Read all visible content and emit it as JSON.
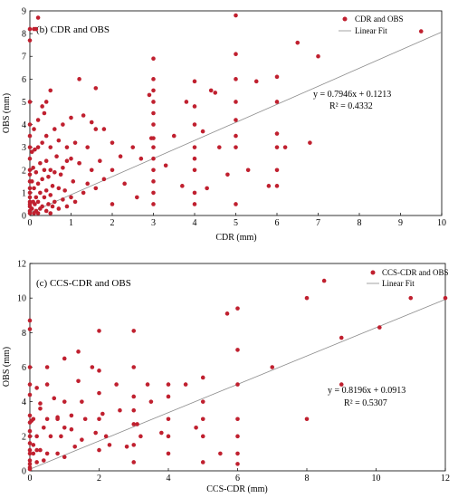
{
  "chart_data": [
    {
      "type": "scatter",
      "title": "(b) CDR and OBS",
      "xlabel": "CDR (mm)",
      "ylabel": "OBS (mm)",
      "xlim": [
        0,
        10
      ],
      "ylim": [
        0,
        9
      ],
      "xticks": [
        0,
        1,
        2,
        3,
        4,
        5,
        6,
        7,
        8,
        9,
        10
      ],
      "yticks": [
        0,
        1,
        2,
        3,
        4,
        5,
        6,
        7,
        8,
        9
      ],
      "legend": {
        "position": "top-right",
        "items": [
          "CDR and OBS",
          "Linear Fit"
        ]
      },
      "point_color": "#c0202f",
      "fit_color": "#8c8c8c",
      "fit": {
        "slope": 0.7946,
        "intercept": 0.1213
      },
      "equation": "y = 0.7946x + 0.1213",
      "r2": "R² = 0.4332",
      "series": [
        {
          "name": "CDR and OBS",
          "x": [
            0,
            0,
            0,
            0,
            0,
            0,
            0,
            0,
            0,
            0,
            0,
            0,
            0,
            0,
            0,
            0,
            0,
            0,
            0.05,
            0.05,
            0.05,
            0.08,
            0.08,
            0.1,
            0.1,
            0.1,
            0.12,
            0.12,
            0.15,
            0.15,
            0.15,
            0.2,
            0.2,
            0.2,
            0.2,
            0.2,
            0.25,
            0.25,
            0.25,
            0.3,
            0.3,
            0.3,
            0.3,
            0.35,
            0.35,
            0.4,
            0.4,
            0.4,
            0.4,
            0.45,
            0.45,
            0.5,
            0.5,
            0.5,
            0.5,
            0.55,
            0.55,
            0.6,
            0.6,
            0.6,
            0.65,
            0.7,
            0.7,
            0.7,
            0.75,
            0.8,
            0.8,
            0.8,
            0.85,
            0.9,
            0.9,
            1.0,
            1.0,
            1.0,
            1.05,
            1.1,
            1.1,
            1.2,
            1.2,
            1.3,
            1.3,
            1.4,
            1.4,
            1.5,
            1.5,
            1.6,
            1.6,
            1.7,
            1.8,
            1.8,
            2.0,
            2.0,
            2.0,
            2.2,
            2.3,
            2.5,
            2.6,
            2.7,
            3,
            3,
            3,
            3,
            3,
            3,
            3,
            3,
            3,
            3,
            3,
            3,
            3,
            3.3,
            3.5,
            3.7,
            3.8,
            4,
            4,
            4,
            4,
            4,
            4,
            4,
            4,
            4.2,
            4.3,
            4.4,
            4.5,
            4.6,
            4.8,
            5,
            5,
            5,
            5,
            5,
            5,
            5,
            5,
            5.3,
            5.5,
            5.8,
            6,
            6,
            6,
            6,
            6,
            6,
            6.2,
            6.5,
            6.8,
            7,
            0.1,
            0.15,
            0.2,
            0.4,
            0.5,
            0.35,
            1.2,
            1.6,
            0.9,
            2.9,
            2.95,
            9.5
          ],
          "y": [
            8.2,
            7.7,
            5.0,
            4.0,
            3.5,
            3.0,
            2.5,
            2.0,
            1.8,
            1.5,
            1.2,
            1.0,
            0.8,
            0.6,
            0.5,
            0.4,
            0.2,
            0.1,
            2.8,
            1.5,
            0.3,
            2.1,
            0.6,
            3.8,
            1.2,
            0.1,
            2.9,
            0.5,
            1.9,
            0.8,
            0.2,
            4.2,
            3.0,
            1.4,
            0.6,
            0.1,
            2.3,
            1.0,
            0.3,
            4.8,
            3.2,
            1.6,
            0.4,
            2.0,
            0.8,
            3.5,
            2.4,
            1.1,
            0.2,
            1.7,
            0.5,
            3.0,
            2.0,
            0.9,
            0.1,
            1.3,
            0.4,
            3.8,
            1.9,
            0.6,
            2.6,
            3.3,
            1.2,
            0.3,
            1.8,
            4.0,
            2.1,
            0.7,
            1.1,
            3.0,
            0.4,
            4.3,
            2.5,
            0.8,
            1.5,
            3.2,
            0.6,
            6.0,
            2.3,
            4.4,
            1.0,
            3.0,
            1.4,
            4.1,
            2.0,
            5.6,
            1.2,
            2.4,
            3.8,
            1.6,
            3.2,
            2.0,
            0.5,
            2.6,
            1.4,
            3.0,
            0.8,
            2.5,
            6.9,
            6.0,
            5.5,
            5.0,
            4.5,
            4.0,
            3.4,
            3.0,
            2.5,
            2.0,
            1.5,
            1.0,
            0.5,
            2.2,
            3.5,
            1.3,
            5.0,
            5.9,
            4.8,
            4.0,
            3.0,
            2.5,
            2.0,
            1.0,
            0.5,
            3.7,
            1.2,
            5.5,
            5.4,
            3.0,
            1.8,
            8.8,
            7.1,
            6.0,
            5.0,
            4.2,
            3.5,
            3.0,
            0.5,
            2.0,
            5.9,
            1.3,
            6.1,
            5.0,
            3.6,
            3.0,
            2.0,
            1.3,
            3.0,
            7.6,
            3.2,
            7.0,
            8.2,
            8.2,
            8.7,
            5.0,
            5.5,
            4.5,
            2.3,
            3.8,
            2.4,
            5.3,
            3.4,
            8.1
          ]
        }
      ]
    },
    {
      "type": "scatter",
      "title": "(c) CCS-CDR and OBS",
      "xlabel": "CCS-CDR (mm)",
      "ylabel": "OBS (mm)",
      "xlim": [
        0,
        12
      ],
      "ylim": [
        0,
        12
      ],
      "xticks": [
        0,
        2,
        4,
        6,
        8,
        10,
        12
      ],
      "yticks": [
        0,
        2,
        4,
        6,
        8,
        10,
        12
      ],
      "legend": {
        "position": "top-right",
        "items": [
          "CCS-CDR and OBS",
          "Linear Fit"
        ]
      },
      "point_color": "#c0202f",
      "fit_color": "#8c8c8c",
      "fit": {
        "slope": 0.8196,
        "intercept": 0.0913
      },
      "equation": "y = 0.8196x + 0.0913",
      "r2": "R² = 0.5307",
      "series": [
        {
          "name": "CCS-CDR and OBS",
          "x": [
            0,
            0,
            0,
            0,
            0,
            0,
            0,
            0,
            0,
            0,
            0,
            0,
            0,
            0,
            0,
            0,
            0.1,
            0.1,
            0.2,
            0.2,
            0.2,
            0.3,
            0.3,
            0.4,
            0.4,
            0.5,
            0.5,
            0.5,
            0.6,
            0.7,
            0.8,
            0.8,
            0.9,
            1,
            1,
            1,
            1,
            1.2,
            1.3,
            1.4,
            1.5,
            1.5,
            1.6,
            1.8,
            1.9,
            2,
            2,
            2,
            2,
            2,
            2.2,
            2.5,
            2.6,
            2.8,
            3,
            3,
            3,
            3,
            3,
            3,
            3,
            3.2,
            3.4,
            3.5,
            3.8,
            4,
            4,
            4,
            4,
            4,
            4.5,
            4.8,
            5,
            5,
            5,
            5,
            5,
            5.5,
            5.7,
            6,
            6,
            6,
            6,
            6,
            6,
            6,
            7,
            8,
            8,
            8.5,
            9,
            9,
            10.1,
            11,
            12,
            0.05,
            0.1,
            0.3,
            0.5,
            0.2,
            0.8,
            1.4,
            1.2,
            2.1,
            2.3,
            3.1
          ],
          "y": [
            8.7,
            8.2,
            6.0,
            5.0,
            4.4,
            3.2,
            2.8,
            2.3,
            2.0,
            1.6,
            1.2,
            1.0,
            0.6,
            0.4,
            0.2,
            0.1,
            3.0,
            1.0,
            4.8,
            2.0,
            0.5,
            3.6,
            1.2,
            2.5,
            0.6,
            6.0,
            3.0,
            1.0,
            2.0,
            4.2,
            3.0,
            1.0,
            2.0,
            6.5,
            4.0,
            2.5,
            0.8,
            3.2,
            1.4,
            6.9,
            4.0,
            1.8,
            3.0,
            6.0,
            2.2,
            8.1,
            5.8,
            4.5,
            3.0,
            1.2,
            2.0,
            5.0,
            3.5,
            1.4,
            8.1,
            6.0,
            4.3,
            3.5,
            2.7,
            1.5,
            0.5,
            2.0,
            5.0,
            4.0,
            2.2,
            5.0,
            4.3,
            3.0,
            2.0,
            1.0,
            5.0,
            2.5,
            5.4,
            4.0,
            3.0,
            2.0,
            0.5,
            1.0,
            9.1,
            9.4,
            7.0,
            5.0,
            3.0,
            2.0,
            1.0,
            0.4,
            6.0,
            10.0,
            3.0,
            11.0,
            7.7,
            5.0,
            8.3,
            10.0,
            10.0,
            2.9,
            1.5,
            3.9,
            5.0,
            1.2,
            3.1,
            5.2,
            2.4,
            3.3,
            1.5,
            2.7
          ]
        }
      ]
    }
  ]
}
